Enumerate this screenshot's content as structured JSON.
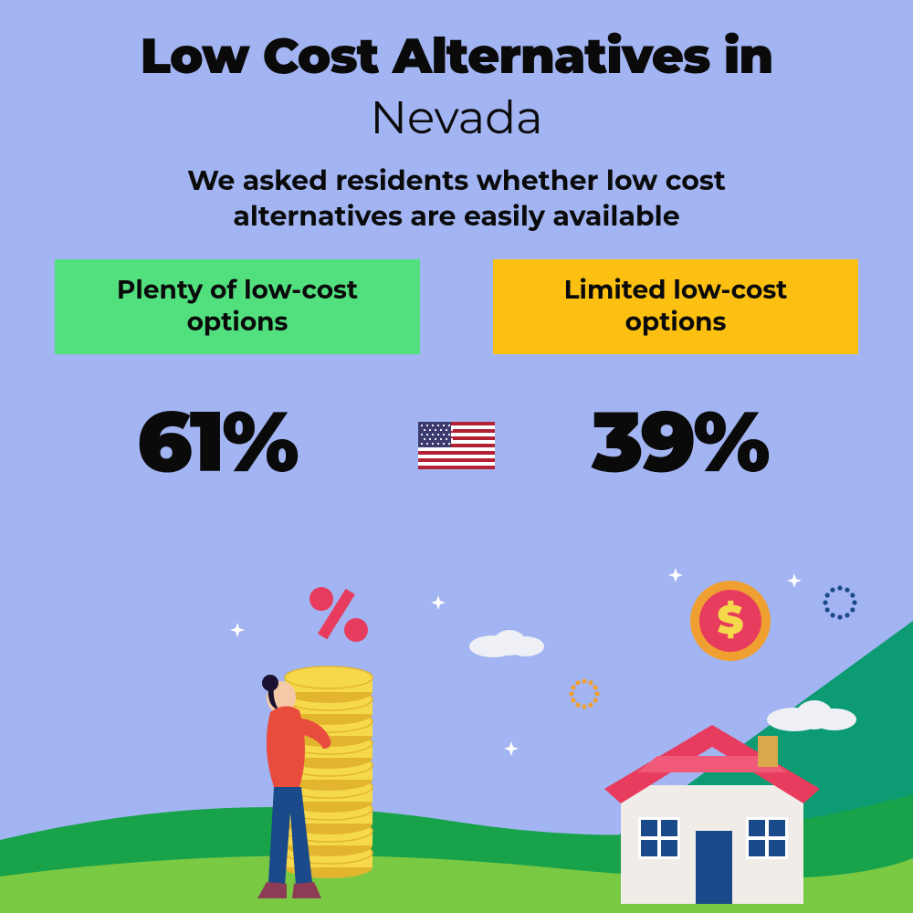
{
  "background_color": "#a2b4f2",
  "title": {
    "line1": "Low Cost Alternatives in",
    "line2": "Nevada",
    "line1_fontsize": 54,
    "line2_fontsize": 50,
    "line1_weight": 900,
    "line2_weight": 400,
    "color": "#0a0a0a"
  },
  "subtitle": {
    "text": "We asked residents whether low cost alternatives are easily available",
    "fontsize": 30,
    "weight": 700,
    "color": "#0a0a0a"
  },
  "options": {
    "left": {
      "label": "Plenty of low-cost options",
      "bg_color": "#52e07f",
      "text_color": "#0a0a0a",
      "fontsize": 28,
      "percent": "61%"
    },
    "right": {
      "label": "Limited low-cost options",
      "bg_color": "#fbc011",
      "text_color": "#0a0a0a",
      "fontsize": 28,
      "percent": "39%"
    },
    "percent_fontsize": 92,
    "percent_color": "#0a0a0a"
  },
  "flag": {
    "name": "usa-flag",
    "bg": "#ffffff",
    "stripe": "#b22234",
    "canton": "#3c3b6e"
  },
  "illustration": {
    "ground_back": "#18a24a",
    "ground_front": "#7ac943",
    "ground_split": "#3fbf67",
    "sky_triangle": "#0d9b73",
    "person": {
      "shirt": "#e84c3d",
      "pants": "#1a4a8a",
      "skin": "#f4c9a8",
      "hair": "#1a1030",
      "boots": "#8e3b56"
    },
    "coins": {
      "fill": "#f6d94b",
      "edge": "#e3b52f"
    },
    "percent_sign": "#e73c5d",
    "house": {
      "wall": "#f0ede8",
      "roof": "#e73c5d",
      "roof_top": "#f05a78",
      "door": "#1a4a8a",
      "window": "#1a4a8a",
      "window_frame": "#ffffff",
      "chimney": "#d9a84a"
    },
    "dollar_coin": {
      "outer": "#f0a030",
      "inner": "#e73c5d",
      "symbol": "#f6d94b"
    },
    "cloud": "#eef0f5",
    "sparkle": "#ffffff",
    "dotted_ring1": "#1a4a8a",
    "dotted_ring2": "#f0a030"
  }
}
